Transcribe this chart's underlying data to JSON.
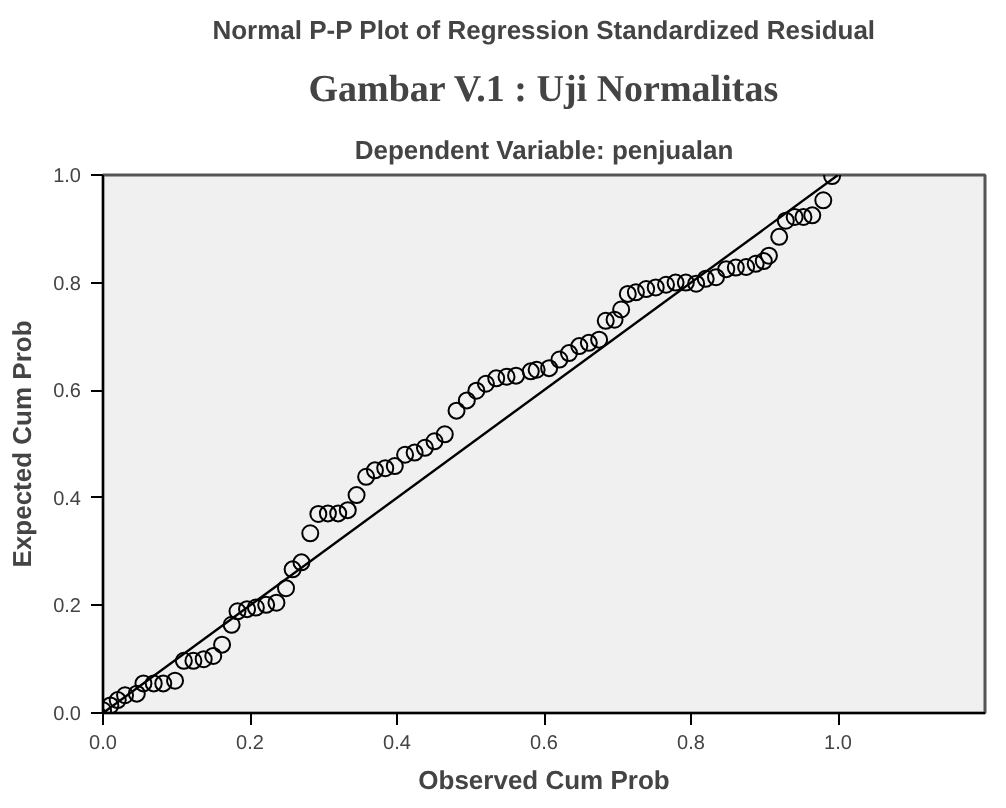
{
  "chart_data": {
    "type": "scatter",
    "title": "Normal P-P Plot of Regression Standardized Residual",
    "subtitle": "Dependent Variable: penjualan",
    "annotations": [
      "Gambar V.1 : Uji Normalitas"
    ],
    "xlabel": "Observed Cum Prob",
    "ylabel": "Expected Cum Prob",
    "series": [
      {
        "marker": "circle",
        "color": "#000000",
        "x": [
          0.0,
          0.01,
          0.02,
          0.03,
          0.046,
          0.055,
          0.069,
          0.082,
          0.098,
          0.11,
          0.123,
          0.137,
          0.15,
          0.162,
          0.175,
          0.183,
          0.196,
          0.208,
          0.222,
          0.236,
          0.249,
          0.258,
          0.27,
          0.282,
          0.293,
          0.306,
          0.32,
          0.333,
          0.345,
          0.358,
          0.37,
          0.384,
          0.397,
          0.411,
          0.424,
          0.438,
          0.451,
          0.465,
          0.481,
          0.495,
          0.508,
          0.521,
          0.535,
          0.549,
          0.562,
          0.582,
          0.59,
          0.607,
          0.621,
          0.634,
          0.648,
          0.661,
          0.675,
          0.684,
          0.696,
          0.705,
          0.714,
          0.725,
          0.739,
          0.752,
          0.766,
          0.779,
          0.793,
          0.807,
          0.82,
          0.834,
          0.848,
          0.861,
          0.875,
          0.888,
          0.899,
          0.906,
          0.92,
          0.929,
          0.941,
          0.953,
          0.965,
          0.98,
          0.992
        ],
        "values": [
          0.005,
          0.014,
          0.024,
          0.033,
          0.036,
          0.055,
          0.055,
          0.055,
          0.06,
          0.097,
          0.097,
          0.1,
          0.106,
          0.127,
          0.164,
          0.189,
          0.193,
          0.196,
          0.201,
          0.205,
          0.232,
          0.267,
          0.28,
          0.334,
          0.37,
          0.371,
          0.371,
          0.377,
          0.405,
          0.439,
          0.451,
          0.455,
          0.459,
          0.48,
          0.484,
          0.493,
          0.505,
          0.518,
          0.562,
          0.581,
          0.599,
          0.612,
          0.622,
          0.625,
          0.627,
          0.635,
          0.638,
          0.641,
          0.657,
          0.669,
          0.682,
          0.688,
          0.694,
          0.729,
          0.731,
          0.75,
          0.779,
          0.782,
          0.788,
          0.791,
          0.796,
          0.8,
          0.8,
          0.798,
          0.807,
          0.81,
          0.825,
          0.828,
          0.829,
          0.835,
          0.84,
          0.85,
          0.885,
          0.915,
          0.922,
          0.922,
          0.925,
          0.953,
          0.998
        ]
      },
      {
        "type": "line",
        "marker": "none",
        "color": "#000000",
        "x": [
          0.0,
          1.0
        ],
        "values": [
          0.0,
          1.0
        ]
      }
    ],
    "grid": false,
    "xlim": [
      0.0,
      1.2
    ],
    "ylim": [
      0.0,
      1.0
    ],
    "xticks": [
      {
        "value": 0.0,
        "label": "0.0"
      },
      {
        "value": 0.2,
        "label": "0.2"
      },
      {
        "value": 0.4,
        "label": "0.4"
      },
      {
        "value": 0.6,
        "label": "0.6"
      },
      {
        "value": 0.8,
        "label": "0.8"
      },
      {
        "value": 1.0,
        "label": "1.0"
      }
    ],
    "yticks": [
      {
        "value": 0.0,
        "label": "0.0"
      },
      {
        "value": 0.2,
        "label": "0.2"
      },
      {
        "value": 0.4,
        "label": "0.4"
      },
      {
        "value": 0.6,
        "label": "0.6"
      },
      {
        "value": 0.8,
        "label": "0.8"
      },
      {
        "value": 1.0,
        "label": "1.0"
      }
    ]
  }
}
